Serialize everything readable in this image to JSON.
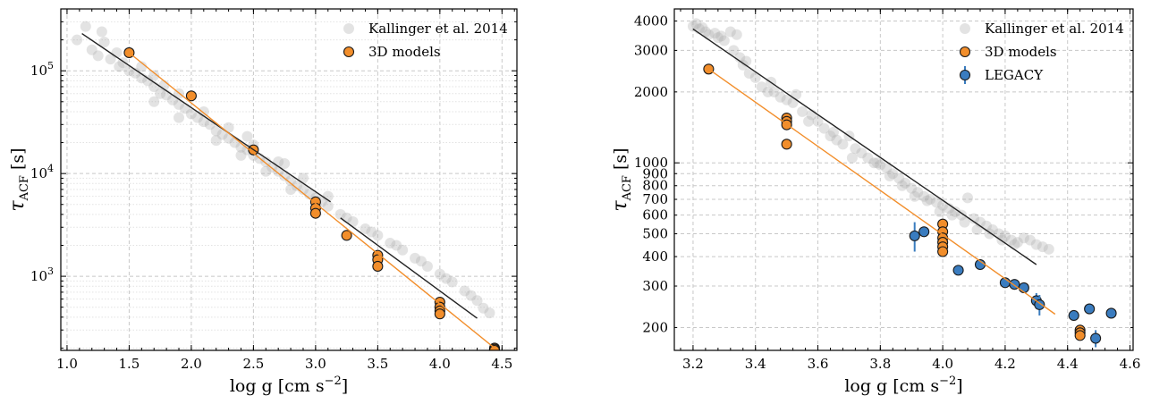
{
  "chart_data": [
    {
      "type": "scatter",
      "yscale": "log",
      "xlabel": "log g [cm s",
      "xlabel_sup": "−2",
      "xlabel_close": "]",
      "ylabel": "τ",
      "ylabel_sub": "ACF",
      "ylabel_unit": " [s]",
      "xlim": [
        0.95,
        4.62
      ],
      "ylim": [
        190,
        400000
      ],
      "xticks": [
        1.0,
        1.5,
        2.0,
        2.5,
        3.0,
        3.5,
        4.0,
        4.5
      ],
      "xtick_labels": [
        "1.0",
        "1.5",
        "2.0",
        "2.5",
        "3.0",
        "3.5",
        "4.0",
        "4.5"
      ],
      "yticks": [
        1000,
        10000,
        100000
      ],
      "ytick_labels": [
        {
          "base": "10",
          "exp": "3"
        },
        {
          "base": "10",
          "exp": "4"
        },
        {
          "base": "10",
          "exp": "5"
        }
      ],
      "grid": true,
      "legend_position": "top-right",
      "series": [
        {
          "name": "Kallinger et al. 2014",
          "color": "#bdbdbd",
          "marker": "circle-transparent",
          "points": [
            [
              1.08,
              200000
            ],
            [
              1.15,
              270000
            ],
            [
              1.2,
              160000
            ],
            [
              1.25,
              140000
            ],
            [
              1.28,
              240000
            ],
            [
              1.3,
              190000
            ],
            [
              1.35,
              130000
            ],
            [
              1.4,
              150000
            ],
            [
              1.42,
              110000
            ],
            [
              1.45,
              120000
            ],
            [
              1.5,
              100000
            ],
            [
              1.55,
              95000
            ],
            [
              1.6,
              85000
            ],
            [
              1.65,
              80000
            ],
            [
              1.7,
              70000
            ],
            [
              1.75,
              60000
            ],
            [
              1.78,
              72000
            ],
            [
              1.8,
              58000
            ],
            [
              1.85,
              52000
            ],
            [
              1.9,
              47000
            ],
            [
              1.95,
              43000
            ],
            [
              2.0,
              38000
            ],
            [
              2.05,
              35000
            ],
            [
              2.1,
              32000
            ],
            [
              2.15,
              30000
            ],
            [
              2.2,
              26000
            ],
            [
              2.25,
              24000
            ],
            [
              2.3,
              22000
            ],
            [
              2.35,
              20000
            ],
            [
              2.4,
              18000
            ],
            [
              2.45,
              17000
            ],
            [
              2.5,
              15000
            ],
            [
              2.55,
              14000
            ],
            [
              2.6,
              13000
            ],
            [
              2.65,
              11500
            ],
            [
              2.7,
              10500
            ],
            [
              2.75,
              9500
            ],
            [
              2.8,
              8500
            ],
            [
              2.85,
              7600
            ],
            [
              2.9,
              7000
            ],
            [
              2.95,
              6300
            ],
            [
              3.0,
              5800
            ],
            [
              3.05,
              5300
            ],
            [
              3.1,
              4800
            ],
            [
              3.2,
              4000
            ],
            [
              3.3,
              3400
            ],
            [
              3.4,
              2900
            ],
            [
              3.5,
              2500
            ],
            [
              3.6,
              2100
            ],
            [
              3.7,
              1800
            ],
            [
              3.8,
              1500
            ],
            [
              3.9,
              1250
            ],
            [
              4.0,
              1050
            ],
            [
              4.1,
              880
            ],
            [
              4.2,
              720
            ],
            [
              4.3,
              580
            ],
            [
              4.35,
              490
            ],
            [
              4.4,
              440
            ],
            [
              1.6,
              110000
            ],
            [
              1.7,
              90000
            ],
            [
              1.9,
              60000
            ],
            [
              2.1,
              40000
            ],
            [
              2.3,
              28000
            ],
            [
              2.5,
              19000
            ],
            [
              2.7,
              13000
            ],
            [
              2.9,
              9000
            ],
            [
              3.1,
              6000
            ],
            [
              1.7,
              50000
            ],
            [
              1.9,
              35000
            ],
            [
              2.2,
              21000
            ],
            [
              2.4,
              15000
            ],
            [
              2.6,
              10500
            ],
            [
              2.8,
              7000
            ],
            [
              3.0,
              4600
            ],
            [
              2.45,
              23000
            ],
            [
              2.75,
              12500
            ],
            [
              3.25,
              3700
            ],
            [
              3.45,
              2700
            ],
            [
              3.65,
              2000
            ],
            [
              3.85,
              1400
            ],
            [
              4.05,
              950
            ],
            [
              4.25,
              650
            ]
          ]
        },
        {
          "name": "3D models",
          "color": "#f28e2b",
          "marker": "circle",
          "points": [
            [
              1.5,
              150000
            ],
            [
              2.0,
              57000
            ],
            [
              2.5,
              17000
            ],
            [
              3.0,
              5300
            ],
            [
              3.0,
              4600
            ],
            [
              3.0,
              4100
            ],
            [
              3.25,
              2500
            ],
            [
              3.5,
              1600
            ],
            [
              3.5,
              1450
            ],
            [
              3.5,
              1250
            ],
            [
              4.0,
              560
            ],
            [
              4.0,
              500
            ],
            [
              4.0,
              460
            ],
            [
              4.0,
              430
            ],
            [
              4.44,
              200
            ],
            [
              4.44,
              195
            ],
            [
              4.44,
              190
            ]
          ]
        }
      ],
      "fit_lines": [
        {
          "color": "#222222",
          "points": [
            [
              1.12,
              230000
            ],
            [
              3.12,
              5300
            ]
          ]
        },
        {
          "color": "#222222",
          "points": [
            [
              3.2,
              3700
            ],
            [
              4.3,
              390
            ]
          ]
        },
        {
          "color": "#f28e2b",
          "points": [
            [
              1.5,
              150000
            ],
            [
              4.44,
              200
            ]
          ]
        }
      ]
    },
    {
      "type": "scatter",
      "yscale": "log",
      "xlabel": "log g [cm s",
      "xlabel_sup": "−2",
      "xlabel_close": "]",
      "ylabel": "τ",
      "ylabel_sub": "ACF",
      "ylabel_unit": " [s]",
      "xlim": [
        3.14,
        4.61
      ],
      "ylim": [
        160,
        4500
      ],
      "xticks": [
        3.2,
        3.4,
        3.6,
        3.8,
        4.0,
        4.2,
        4.4,
        4.6
      ],
      "xtick_labels": [
        "3.2",
        "3.4",
        "3.6",
        "3.8",
        "4.0",
        "4.2",
        "4.4",
        "4.6"
      ],
      "yticks": [
        200,
        300,
        400,
        500,
        600,
        700,
        800,
        900,
        1000,
        2000,
        3000,
        4000
      ],
      "ytick_labels": [
        "200",
        "300",
        "400",
        "500",
        "600",
        "700",
        "800",
        "900",
        "1000",
        "2000",
        "3000",
        "4000"
      ],
      "grid": true,
      "legend_position": "top-right",
      "series": [
        {
          "name": "Kallinger et al. 2014",
          "color": "#bdbdbd",
          "marker": "circle-transparent",
          "points": [
            [
              3.2,
              3800
            ],
            [
              3.22,
              3700
            ],
            [
              3.24,
              3600
            ],
            [
              3.25,
              3500
            ],
            [
              3.27,
              3550
            ],
            [
              3.28,
              3400
            ],
            [
              3.3,
              3300
            ],
            [
              3.32,
              3600
            ],
            [
              3.33,
              3000
            ],
            [
              3.35,
              2800
            ],
            [
              3.36,
              2600
            ],
            [
              3.38,
              2400
            ],
            [
              3.4,
              2300
            ],
            [
              3.42,
              2100
            ],
            [
              3.44,
              2000
            ],
            [
              3.46,
              2000
            ],
            [
              3.48,
              1900
            ],
            [
              3.5,
              1850
            ],
            [
              3.52,
              1800
            ],
            [
              3.55,
              1650
            ],
            [
              3.58,
              1600
            ],
            [
              3.6,
              1500
            ],
            [
              3.62,
              1400
            ],
            [
              3.64,
              1300
            ],
            [
              3.66,
              1250
            ],
            [
              3.68,
              1200
            ],
            [
              3.7,
              1300
            ],
            [
              3.72,
              1150
            ],
            [
              3.74,
              1100
            ],
            [
              3.76,
              1050
            ],
            [
              3.78,
              1000
            ],
            [
              3.8,
              980
            ],
            [
              3.82,
              950
            ],
            [
              3.84,
              900
            ],
            [
              3.86,
              860
            ],
            [
              3.88,
              820
            ],
            [
              3.9,
              780
            ],
            [
              3.92,
              750
            ],
            [
              3.94,
              720
            ],
            [
              3.96,
              700
            ],
            [
              3.98,
              680
            ],
            [
              4.0,
              660
            ],
            [
              4.02,
              640
            ],
            [
              4.04,
              620
            ],
            [
              4.06,
              600
            ],
            [
              4.08,
              710
            ],
            [
              4.1,
              580
            ],
            [
              4.12,
              560
            ],
            [
              4.14,
              540
            ],
            [
              4.16,
              520
            ],
            [
              4.18,
              500
            ],
            [
              4.2,
              490
            ],
            [
              4.22,
              470
            ],
            [
              4.24,
              460
            ],
            [
              4.26,
              480
            ],
            [
              4.28,
              470
            ],
            [
              4.3,
              450
            ],
            [
              4.32,
              440
            ],
            [
              4.34,
              430
            ],
            [
              3.21,
              3900
            ],
            [
              3.23,
              3750
            ],
            [
              3.29,
              3450
            ],
            [
              3.34,
              3500
            ],
            [
              3.37,
              2700
            ],
            [
              3.45,
              2200
            ],
            [
              3.53,
              1950
            ],
            [
              3.57,
              1500
            ],
            [
              3.65,
              1350
            ],
            [
              3.71,
              1050
            ],
            [
              3.79,
              1000
            ],
            [
              3.83,
              880
            ],
            [
              3.87,
              800
            ],
            [
              3.91,
              720
            ],
            [
              3.95,
              690
            ],
            [
              3.99,
              620
            ],
            [
              4.03,
              600
            ],
            [
              4.07,
              560
            ],
            [
              4.11,
              520
            ],
            [
              4.15,
              500
            ],
            [
              4.19,
              470
            ],
            [
              4.23,
              450
            ]
          ]
        },
        {
          "name": "3D models",
          "color": "#f28e2b",
          "marker": "circle",
          "points": [
            [
              3.25,
              2500
            ],
            [
              3.5,
              1550
            ],
            [
              3.5,
              1500
            ],
            [
              3.5,
              1450
            ],
            [
              3.5,
              1200
            ],
            [
              4.0,
              550
            ],
            [
              4.0,
              510
            ],
            [
              4.0,
              480
            ],
            [
              4.0,
              460
            ],
            [
              4.0,
              440
            ],
            [
              4.0,
              420
            ],
            [
              4.44,
              195
            ],
            [
              4.44,
              190
            ],
            [
              4.44,
              185
            ]
          ]
        },
        {
          "name": "LEGACY",
          "color": "#3a7cbf",
          "marker": "circle-errorbar",
          "points": [
            [
              3.91,
              490
            ],
            [
              3.94,
              510
            ],
            [
              4.05,
              350
            ],
            [
              4.12,
              370
            ],
            [
              4.2,
              310
            ],
            [
              4.23,
              305
            ],
            [
              4.26,
              295
            ],
            [
              4.3,
              260
            ],
            [
              4.31,
              250
            ],
            [
              4.42,
              225
            ],
            [
              4.47,
              240
            ],
            [
              4.49,
              180
            ],
            [
              4.54,
              230
            ]
          ],
          "yerr": [
            70,
            20,
            10,
            10,
            10,
            10,
            10,
            20,
            25,
            10,
            10,
            15,
            10
          ]
        }
      ],
      "fit_lines": [
        {
          "color": "#222222",
          "points": [
            [
              3.2,
              3700
            ],
            [
              4.3,
              370
            ]
          ]
        },
        {
          "color": "#f28e2b",
          "points": [
            [
              3.25,
              2500
            ],
            [
              4.36,
              228
            ]
          ]
        }
      ]
    }
  ]
}
